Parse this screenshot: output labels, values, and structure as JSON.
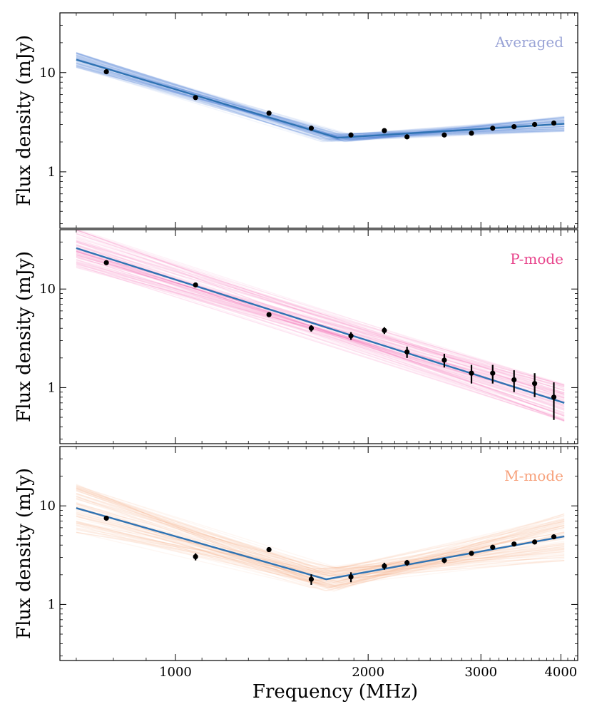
{
  "chart_data": [
    {
      "type": "line",
      "title": "Averaged",
      "title_color": "#99a3d6",
      "band_color": "#3b77d8",
      "fit_color": "#2f73b3",
      "xlabel": "Frequency (MHz)",
      "ylabel": "Flux density (mJy)",
      "xscale": "log",
      "yscale": "log",
      "xlim": [
        660,
        4250
      ],
      "ylim": [
        0.27,
        40
      ],
      "xticks": [
        1000,
        2000,
        3000,
        4000
      ],
      "xtick_labels": [
        "1000",
        "2000",
        "3000",
        "4000"
      ],
      "yticks": [
        1,
        10
      ],
      "ytick_labels": [
        "1",
        "10"
      ],
      "points": {
        "x": [
          780,
          1075,
          1400,
          1630,
          1880,
          2120,
          2300,
          2630,
          2900,
          3130,
          3380,
          3640,
          3900
        ],
        "y": [
          10.2,
          5.6,
          3.9,
          2.75,
          2.35,
          2.6,
          2.25,
          2.35,
          2.45,
          2.75,
          2.85,
          3.0,
          3.1
        ],
        "err": [
          0.2,
          0.15,
          0.1,
          0.08,
          0.08,
          0.08,
          0.07,
          0.07,
          0.07,
          0.07,
          0.07,
          0.08,
          0.09
        ]
      },
      "fit": {
        "x": [
          700,
          1790,
          4050
        ],
        "y": [
          13.5,
          2.2,
          3.05
        ]
      },
      "band_spread": 0.08
    },
    {
      "type": "line",
      "title": "P-mode",
      "title_color": "#e8458c",
      "band_color": "#f03ba0",
      "fit_color": "#2f73b3",
      "xlabel": "Frequency (MHz)",
      "ylabel": "Flux density (mJy)",
      "xscale": "log",
      "yscale": "log",
      "xlim": [
        660,
        4250
      ],
      "ylim": [
        0.27,
        40
      ],
      "xticks": [
        1000,
        2000,
        3000,
        4000
      ],
      "xtick_labels": [
        "1000",
        "2000",
        "3000",
        "4000"
      ],
      "yticks": [
        1,
        10
      ],
      "ytick_labels": [
        "1",
        "10"
      ],
      "points": {
        "x": [
          780,
          1075,
          1400,
          1630,
          1880,
          2120,
          2300,
          2630,
          2900,
          3130,
          3380,
          3640,
          3900
        ],
        "y": [
          18.5,
          11.0,
          5.5,
          4.0,
          3.35,
          3.8,
          2.3,
          1.9,
          1.4,
          1.4,
          1.2,
          1.1,
          0.8
        ],
        "err": [
          0.5,
          0.3,
          0.3,
          0.3,
          0.3,
          0.3,
          0.3,
          0.3,
          0.3,
          0.3,
          0.3,
          0.3,
          0.33
        ]
      },
      "fit": {
        "x": [
          700,
          4050
        ],
        "y": [
          26,
          0.7
        ]
      },
      "band_spread": 0.2
    },
    {
      "type": "line",
      "title": "M-mode",
      "title_color": "#f7a17b",
      "band_color": "#f58d5c",
      "fit_color": "#2f73b3",
      "xlabel": "Frequency (MHz)",
      "ylabel": "Flux density (mJy)",
      "xscale": "log",
      "yscale": "log",
      "xlim": [
        660,
        4250
      ],
      "ylim": [
        0.27,
        40
      ],
      "xticks": [
        1000,
        2000,
        3000,
        4000
      ],
      "xtick_labels": [
        "1000",
        "2000",
        "3000",
        "4000"
      ],
      "yticks": [
        1,
        10
      ],
      "ytick_labels": [
        "1",
        "10"
      ],
      "points": {
        "x": [
          780,
          1075,
          1400,
          1630,
          1880,
          2120,
          2300,
          2630,
          2900,
          3130,
          3380,
          3640,
          3900
        ],
        "y": [
          7.5,
          3.05,
          3.6,
          1.8,
          1.9,
          2.45,
          2.65,
          2.8,
          3.3,
          3.8,
          4.1,
          4.3,
          4.85
        ],
        "err": [
          0.4,
          0.25,
          0.2,
          0.22,
          0.22,
          0.2,
          0.18,
          0.18,
          0.18,
          0.15,
          0.15,
          0.15,
          0.15
        ]
      },
      "fit": {
        "x": [
          700,
          1720,
          4050
        ],
        "y": [
          9.5,
          1.8,
          4.9
        ]
      },
      "band_spread": 0.25
    }
  ]
}
